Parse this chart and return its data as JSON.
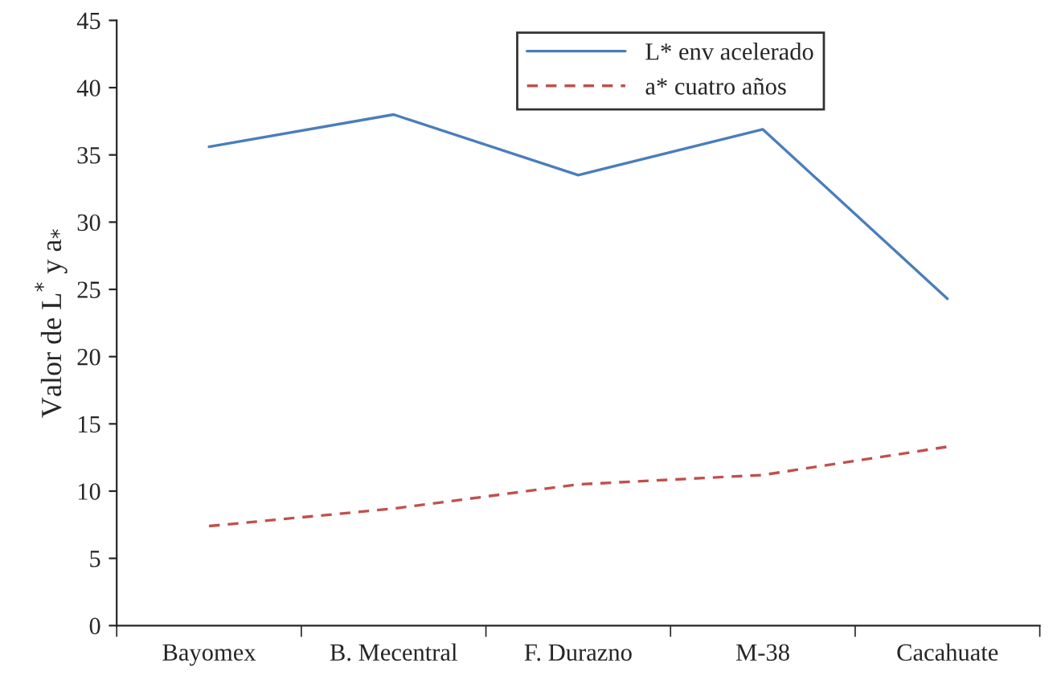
{
  "chart_data": {
    "type": "line",
    "ylabel": "Valor de L$^{*}$ y a$_{*}$",
    "categories": [
      "Bayomex",
      "B. Mecentral",
      "F. Durazno",
      "M-38",
      "Cacahuate"
    ],
    "series": [
      {
        "name": "L* env acelerado",
        "color": "#4a7ebb",
        "line_style": "solid",
        "values": [
          35.6,
          38.0,
          33.5,
          36.9,
          24.3
        ]
      },
      {
        "name": "a* cuatro años",
        "color": "#c0504d",
        "line_style": "dashed",
        "values": [
          7.4,
          8.7,
          10.5,
          11.2,
          13.3
        ]
      }
    ],
    "ylim": [
      0,
      45
    ],
    "yticks": [
      0,
      5,
      10,
      15,
      20,
      25,
      30,
      35,
      40,
      45
    ],
    "grid": false,
    "legend": "top"
  }
}
